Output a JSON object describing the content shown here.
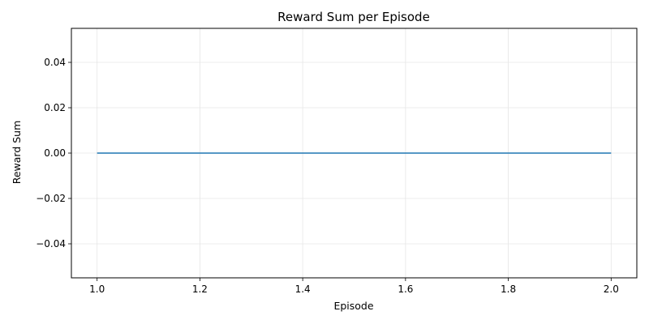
{
  "chart_data": {
    "type": "line",
    "title": "Reward Sum per Episode",
    "xlabel": "Episode",
    "ylabel": "Reward Sum",
    "xlim": [
      0.95,
      2.05
    ],
    "ylim": [
      -0.055,
      0.055
    ],
    "grid": true,
    "x_ticks": [
      1.0,
      1.2,
      1.4,
      1.6,
      1.8,
      2.0
    ],
    "x_tick_labels": [
      "1.0",
      "1.2",
      "1.4",
      "1.6",
      "1.8",
      "2.0"
    ],
    "y_ticks": [
      -0.04,
      -0.02,
      0.0,
      0.02,
      0.04
    ],
    "y_tick_labels": [
      "−0.04",
      "−0.02",
      "0.00",
      "0.02",
      "0.04"
    ],
    "series": [
      {
        "x": [
          1,
          2
        ],
        "values": [
          0,
          0
        ],
        "color": "#1f77b4"
      }
    ]
  }
}
